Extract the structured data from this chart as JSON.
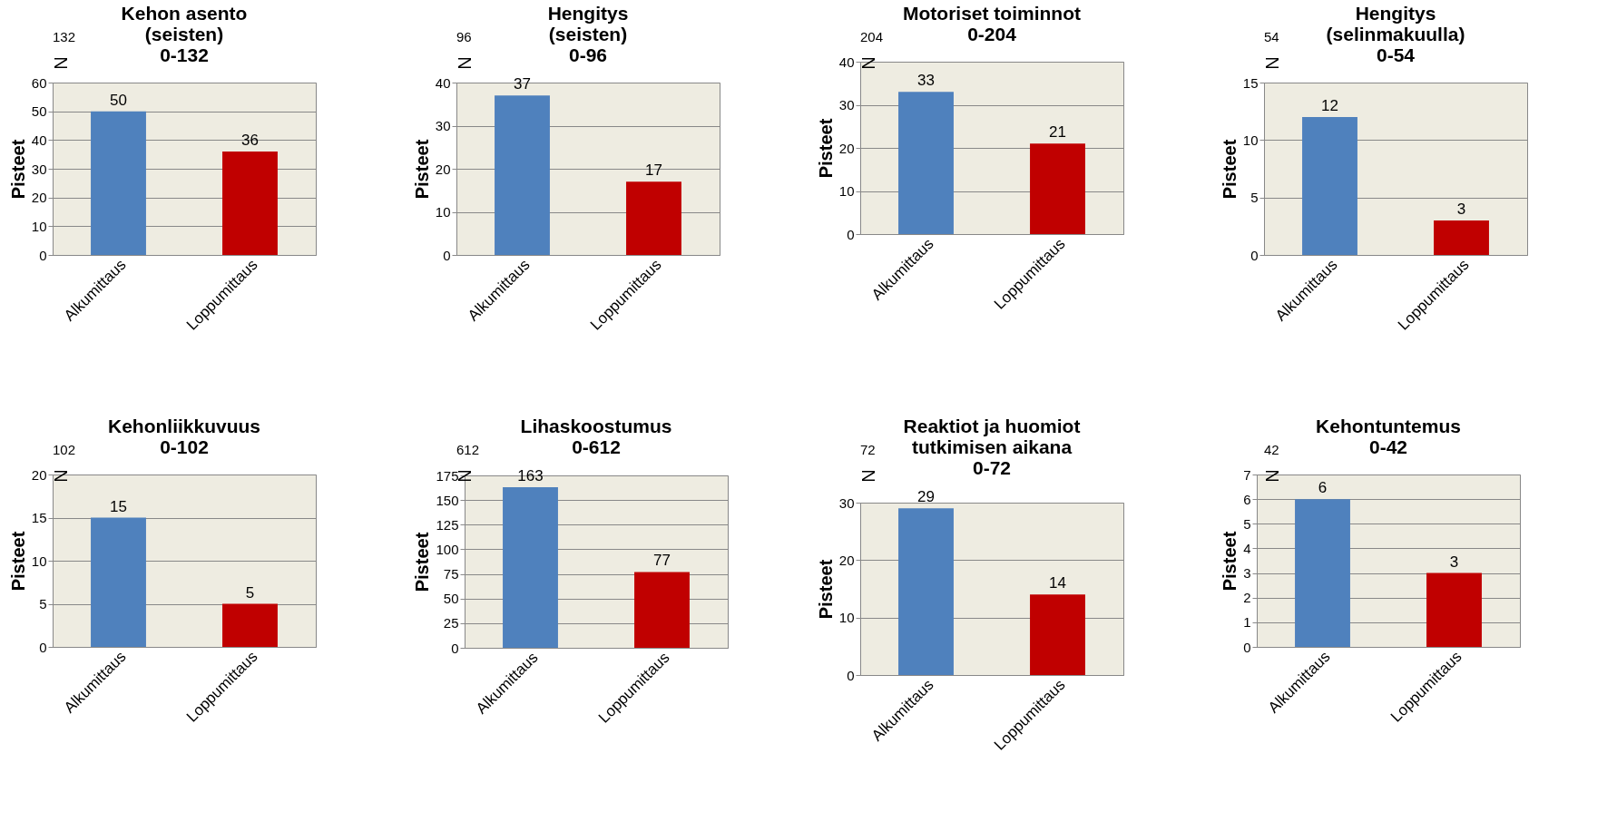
{
  "chart_data": [
    {
      "type": "bar",
      "title": "Kehon asento\n(seisten)\n0-132",
      "ylabel": "Pisteet",
      "annotations": [
        "132",
        "N"
      ],
      "categories": [
        "Alkumittaus",
        "Loppumittaus"
      ],
      "values": [
        50,
        36
      ],
      "colors": [
        "#4f81bd",
        "#c00000"
      ],
      "ylim": [
        0,
        60
      ],
      "yticks": [
        0,
        10,
        20,
        30,
        40,
        50,
        60
      ],
      "grid": "y",
      "data_labels": true
    },
    {
      "type": "bar",
      "title": "Hengitys\n(seisten)\n0-96",
      "ylabel": "Pisteet",
      "annotations": [
        "96",
        "N"
      ],
      "categories": [
        "Alkumittaus",
        "Loppumittaus"
      ],
      "values": [
        37,
        17
      ],
      "colors": [
        "#4f81bd",
        "#c00000"
      ],
      "ylim": [
        0,
        40
      ],
      "yticks": [
        0,
        10,
        20,
        30,
        40
      ],
      "grid": "y",
      "data_labels": true
    },
    {
      "type": "bar",
      "title": "Motoriset toiminnot\n0-204",
      "ylabel": "Pisteet",
      "annotations": [
        "204",
        "N"
      ],
      "categories": [
        "Alkumittaus",
        "Loppumittaus"
      ],
      "values": [
        33,
        21
      ],
      "colors": [
        "#4f81bd",
        "#c00000"
      ],
      "ylim": [
        0,
        40
      ],
      "yticks": [
        0,
        10,
        20,
        30,
        40
      ],
      "grid": "y",
      "data_labels": true
    },
    {
      "type": "bar",
      "title": "Hengitys\n(selinmakuulla)\n0-54",
      "ylabel": "Pisteet",
      "annotations": [
        "54",
        "N"
      ],
      "categories": [
        "Alkumittaus",
        "Loppumittaus"
      ],
      "values": [
        12,
        3
      ],
      "colors": [
        "#4f81bd",
        "#c00000"
      ],
      "ylim": [
        0,
        15
      ],
      "yticks": [
        0,
        5,
        10,
        15
      ],
      "grid": "y",
      "data_labels": true
    },
    {
      "type": "bar",
      "title": "Kehonliikkuvuus\n0-102",
      "ylabel": "Pisteet",
      "annotations": [
        "102",
        "N"
      ],
      "categories": [
        "Alkumittaus",
        "Loppumittaus"
      ],
      "values": [
        15,
        5
      ],
      "colors": [
        "#4f81bd",
        "#c00000"
      ],
      "ylim": [
        0,
        20
      ],
      "yticks": [
        0,
        5,
        10,
        15,
        20
      ],
      "grid": "y",
      "data_labels": true
    },
    {
      "type": "bar",
      "title": "Lihaskoostumus\n0-612",
      "ylabel": "Pisteet",
      "annotations": [
        "612",
        "N"
      ],
      "categories": [
        "Alkumittaus",
        "Loppumittaus"
      ],
      "values": [
        163,
        77
      ],
      "colors": [
        "#4f81bd",
        "#c00000"
      ],
      "ylim": [
        0,
        175
      ],
      "yticks": [
        0,
        25,
        50,
        75,
        100,
        125,
        150,
        175
      ],
      "grid": "y",
      "data_labels": true
    },
    {
      "type": "bar",
      "title": "Reaktiot ja huomiot\ntutkimisen aikana\n0-72",
      "ylabel": "Pisteet",
      "annotations": [
        "72",
        "N"
      ],
      "categories": [
        "Alkumittaus",
        "Loppumittaus"
      ],
      "values": [
        29,
        14
      ],
      "colors": [
        "#4f81bd",
        "#c00000"
      ],
      "ylim": [
        0,
        30
      ],
      "yticks": [
        0,
        10,
        20,
        30
      ],
      "grid": "y",
      "data_labels": true
    },
    {
      "type": "bar",
      "title": "Kehontuntemus\n0-42",
      "ylabel": "Pisteet",
      "annotations": [
        "42",
        "N"
      ],
      "categories": [
        "Alkumittaus",
        "Loppumittaus"
      ],
      "values": [
        6,
        3
      ],
      "colors": [
        "#4f81bd",
        "#c00000"
      ],
      "ylim": [
        0,
        7
      ],
      "yticks": [
        0,
        1,
        2,
        3,
        4,
        5,
        6,
        7
      ],
      "grid": "y",
      "data_labels": true
    }
  ]
}
